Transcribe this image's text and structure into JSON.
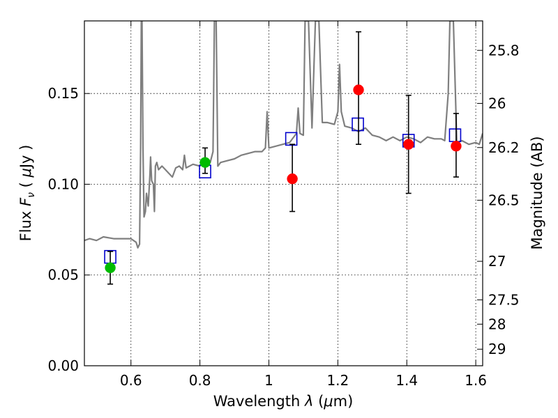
{
  "chart_data": {
    "type": "scatter",
    "xlabel_prefix": "Wavelength  ",
    "xlabel_symbol": "λ",
    "xlabel_units_prefix": " (",
    "xlabel_units_mu": "μ",
    "xlabel_units_suffix": "m)",
    "ylabel_prefix": "Flux  ",
    "ylabel_symbol": "F",
    "ylabel_subscript": "ν",
    "ylabel_units_prefix": "  ( ",
    "ylabel_units_mu": "μ",
    "ylabel_units_suffix": "Jy )",
    "y2label": "Magnitude (AB)",
    "xlim": [
      0.465,
      1.62
    ],
    "ylim": [
      0.0,
      0.19
    ],
    "x_ticks": [
      {
        "value": 0.6,
        "label": "0.6"
      },
      {
        "value": 0.8,
        "label": "0.8"
      },
      {
        "value": 1.0,
        "label": "1"
      },
      {
        "value": 1.2,
        "label": "1.2"
      },
      {
        "value": 1.4,
        "label": "1.4"
      },
      {
        "value": 1.6,
        "label": "1.6"
      }
    ],
    "y_ticks": [
      {
        "value": 0.0,
        "label": "0.00"
      },
      {
        "value": 0.05,
        "label": "0.05"
      },
      {
        "value": 0.1,
        "label": "0.10"
      },
      {
        "value": 0.15,
        "label": "0.15"
      }
    ],
    "y2_ticks": [
      {
        "value": 25.8,
        "label": "25.8"
      },
      {
        "value": 26.0,
        "label": "26"
      },
      {
        "value": 26.2,
        "label": "26.2"
      },
      {
        "value": 26.5,
        "label": "26.5"
      },
      {
        "value": 27.0,
        "label": "27"
      },
      {
        "value": 27.5,
        "label": "27.5"
      },
      {
        "value": 28.0,
        "label": "28"
      },
      {
        "value": 29.0,
        "label": "29"
      }
    ],
    "grid": true,
    "colors": {
      "template": "#7f7f7f",
      "model_box": "#0000cc",
      "ground_point": "#00bb00",
      "hst_point": "#ff0000",
      "errorbar": "#000000"
    },
    "model_points": [
      {
        "x": 0.54,
        "y": 0.06
      },
      {
        "x": 0.815,
        "y": 0.107
      },
      {
        "x": 1.065,
        "y": 0.125
      },
      {
        "x": 1.258,
        "y": 0.133
      },
      {
        "x": 1.405,
        "y": 0.124
      },
      {
        "x": 1.54,
        "y": 0.127
      }
    ],
    "observed_points": [
      {
        "x": 0.54,
        "y": 0.054,
        "err_lo": 0.045,
        "err_hi": 0.063,
        "group": "ground"
      },
      {
        "x": 0.815,
        "y": 0.112,
        "err_lo": 0.106,
        "err_hi": 0.12,
        "group": "ground"
      },
      {
        "x": 1.068,
        "y": 0.103,
        "err_lo": 0.085,
        "err_hi": 0.122,
        "group": "hst"
      },
      {
        "x": 1.26,
        "y": 0.152,
        "err_lo": 0.122,
        "err_hi": 0.184,
        "group": "hst"
      },
      {
        "x": 1.405,
        "y": 0.122,
        "err_lo": 0.095,
        "err_hi": 0.149,
        "group": "hst"
      },
      {
        "x": 1.543,
        "y": 0.121,
        "err_lo": 0.104,
        "err_hi": 0.139,
        "group": "hst"
      }
    ],
    "template_spectrum": [
      [
        0.465,
        0.069
      ],
      [
        0.48,
        0.07
      ],
      [
        0.5,
        0.069
      ],
      [
        0.52,
        0.071
      ],
      [
        0.55,
        0.07
      ],
      [
        0.58,
        0.07
      ],
      [
        0.6,
        0.07
      ],
      [
        0.615,
        0.068
      ],
      [
        0.62,
        0.065
      ],
      [
        0.625,
        0.067
      ],
      [
        0.628,
        0.12
      ],
      [
        0.63,
        0.19
      ],
      [
        0.632,
        0.19
      ],
      [
        0.635,
        0.12
      ],
      [
        0.638,
        0.082
      ],
      [
        0.642,
        0.085
      ],
      [
        0.645,
        0.095
      ],
      [
        0.65,
        0.088
      ],
      [
        0.655,
        0.105
      ],
      [
        0.657,
        0.115
      ],
      [
        0.66,
        0.102
      ],
      [
        0.665,
        0.1
      ],
      [
        0.668,
        0.085
      ],
      [
        0.671,
        0.11
      ],
      [
        0.675,
        0.112
      ],
      [
        0.68,
        0.108
      ],
      [
        0.69,
        0.11
      ],
      [
        0.7,
        0.108
      ],
      [
        0.72,
        0.104
      ],
      [
        0.73,
        0.109
      ],
      [
        0.74,
        0.11
      ],
      [
        0.75,
        0.108
      ],
      [
        0.755,
        0.116
      ],
      [
        0.76,
        0.109
      ],
      [
        0.78,
        0.111
      ],
      [
        0.8,
        0.11
      ],
      [
        0.81,
        0.113
      ],
      [
        0.82,
        0.11
      ],
      [
        0.83,
        0.112
      ],
      [
        0.838,
        0.118
      ],
      [
        0.842,
        0.19
      ],
      [
        0.847,
        0.19
      ],
      [
        0.852,
        0.11
      ],
      [
        0.86,
        0.112
      ],
      [
        0.88,
        0.113
      ],
      [
        0.9,
        0.114
      ],
      [
        0.92,
        0.116
      ],
      [
        0.94,
        0.117
      ],
      [
        0.96,
        0.118
      ],
      [
        0.98,
        0.118
      ],
      [
        0.99,
        0.12
      ],
      [
        0.995,
        0.14
      ],
      [
        1.0,
        0.12
      ],
      [
        1.02,
        0.121
      ],
      [
        1.04,
        0.122
      ],
      [
        1.06,
        0.123
      ],
      [
        1.08,
        0.128
      ],
      [
        1.085,
        0.142
      ],
      [
        1.09,
        0.128
      ],
      [
        1.1,
        0.127
      ],
      [
        1.105,
        0.19
      ],
      [
        1.115,
        0.19
      ],
      [
        1.125,
        0.131
      ],
      [
        1.135,
        0.19
      ],
      [
        1.145,
        0.19
      ],
      [
        1.155,
        0.134
      ],
      [
        1.17,
        0.134
      ],
      [
        1.19,
        0.133
      ],
      [
        1.2,
        0.14
      ],
      [
        1.205,
        0.166
      ],
      [
        1.21,
        0.14
      ],
      [
        1.22,
        0.132
      ],
      [
        1.24,
        0.131
      ],
      [
        1.25,
        0.13
      ],
      [
        1.26,
        0.129
      ],
      [
        1.28,
        0.131
      ],
      [
        1.3,
        0.127
      ],
      [
        1.32,
        0.126
      ],
      [
        1.34,
        0.124
      ],
      [
        1.36,
        0.126
      ],
      [
        1.38,
        0.124
      ],
      [
        1.4,
        0.126
      ],
      [
        1.42,
        0.125
      ],
      [
        1.44,
        0.123
      ],
      [
        1.46,
        0.126
      ],
      [
        1.48,
        0.125
      ],
      [
        1.5,
        0.125
      ],
      [
        1.51,
        0.124
      ],
      [
        1.52,
        0.15
      ],
      [
        1.525,
        0.19
      ],
      [
        1.535,
        0.19
      ],
      [
        1.545,
        0.123
      ],
      [
        1.56,
        0.124
      ],
      [
        1.58,
        0.122
      ],
      [
        1.6,
        0.123
      ],
      [
        1.61,
        0.122
      ],
      [
        1.62,
        0.128
      ]
    ]
  }
}
